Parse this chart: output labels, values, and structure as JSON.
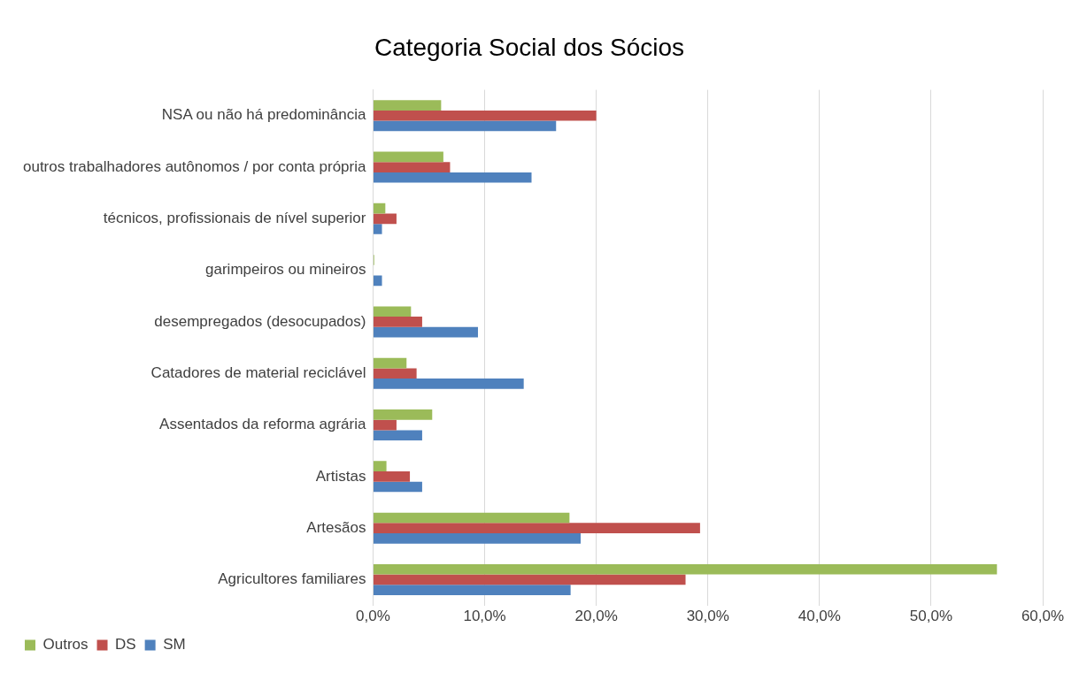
{
  "chart_data": {
    "type": "bar",
    "orientation": "horizontal",
    "title": "Categoria Social dos Sócios",
    "categories": [
      "NSA ou não há predominância",
      "outros trabalhadores autônomos / por conta própria",
      "técnicos, profissionais de nível superior",
      "garimpeiros ou mineiros",
      "desempregados (desocupados)",
      "Catadores de material reciclável",
      "Assentados da reforma agrária",
      "Artistas",
      "Artesãos",
      "Agricultores familiares"
    ],
    "series": [
      {
        "name": "Outros",
        "color": "#9bbb59",
        "values": [
          6.1,
          6.3,
          1.1,
          0.1,
          3.4,
          3.0,
          5.3,
          1.2,
          17.6,
          55.9
        ]
      },
      {
        "name": "DS",
        "color": "#c0504d",
        "values": [
          20.0,
          6.9,
          2.1,
          0,
          4.4,
          3.9,
          2.1,
          3.3,
          29.3,
          28.0
        ]
      },
      {
        "name": "SM",
        "color": "#4f81bd",
        "values": [
          16.4,
          14.2,
          0.8,
          0.8,
          9.4,
          13.5,
          4.4,
          4.4,
          18.6,
          17.7
        ]
      }
    ],
    "xlim": [
      0,
      60
    ],
    "xticks": [
      {
        "value": 0,
        "label": "0,0%"
      },
      {
        "value": 10,
        "label": "10,0%"
      },
      {
        "value": 20,
        "label": "20,0%"
      },
      {
        "value": 30,
        "label": "30,0%"
      },
      {
        "value": 40,
        "label": "40,0%"
      },
      {
        "value": 50,
        "label": "50,0%"
      },
      {
        "value": 60,
        "label": "60,0%"
      }
    ],
    "grid": "x",
    "legend": "bottom left"
  }
}
